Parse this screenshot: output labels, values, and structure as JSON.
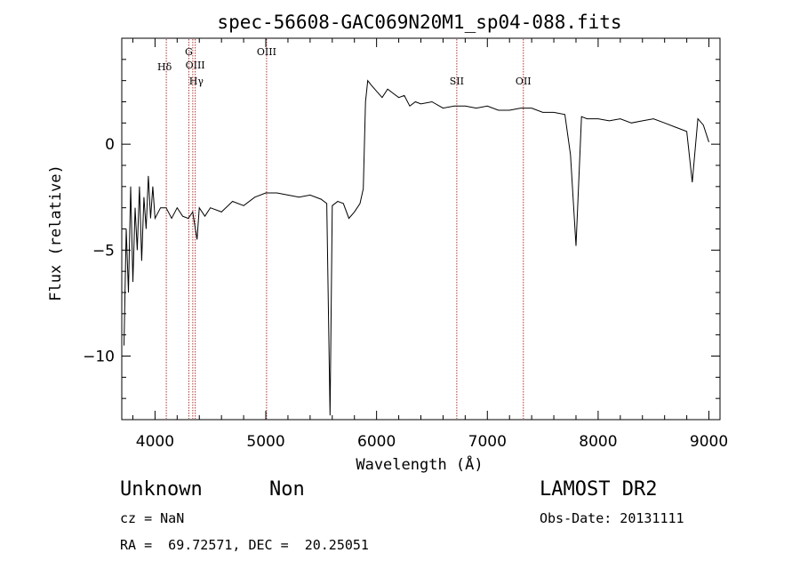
{
  "chart_data": {
    "type": "line",
    "title": "spec-56608-GAC069N20M1_sp04-088.fits",
    "xlabel": "Wavelength (Å)",
    "ylabel": "Flux (relative)",
    "xlim": [
      3700,
      9100
    ],
    "ylim": [
      -13,
      5
    ],
    "xticks": [
      4000,
      5000,
      6000,
      7000,
      8000,
      9000
    ],
    "xtick_labels": [
      "4000",
      "5000",
      "6000",
      "7000",
      "8000",
      "9000"
    ],
    "yticks": [
      0,
      -5,
      -10
    ],
    "ytick_labels": [
      "0",
      "−5",
      "−10"
    ],
    "series": [
      {
        "x": [
          3720,
          3740,
          3760,
          3780,
          3800,
          3820,
          3840,
          3860,
          3880,
          3900,
          3920,
          3940,
          3960,
          3980,
          4000,
          4050,
          4100,
          4150,
          4200,
          4250,
          4300,
          4340,
          4380,
          4400,
          4450,
          4500,
          4600,
          4700,
          4800,
          4900,
          5000,
          5100,
          5200,
          5300,
          5400,
          5500,
          5550,
          5580,
          5600,
          5650,
          5700,
          5750,
          5800,
          5850,
          5880,
          5900,
          5920,
          5950,
          6000,
          6050,
          6100,
          6150,
          6200,
          6250,
          6300,
          6350,
          6400,
          6500,
          6600,
          6700,
          6800,
          6900,
          7000,
          7100,
          7200,
          7300,
          7400,
          7500,
          7600,
          7700,
          7750,
          7800,
          7850,
          7900,
          8000,
          8100,
          8200,
          8300,
          8400,
          8500,
          8600,
          8700,
          8800,
          8850,
          8900,
          8950,
          9000
        ],
        "y": [
          -9.5,
          -4,
          -7,
          -2,
          -6.5,
          -3,
          -5,
          -2,
          -5.5,
          -2.5,
          -4,
          -1.5,
          -3.5,
          -2,
          -3.5,
          -3,
          -3,
          -3.5,
          -3,
          -3.4,
          -3.5,
          -3.2,
          -4.5,
          -3,
          -3.4,
          -3,
          -3.2,
          -2.7,
          -2.9,
          -2.5,
          -2.3,
          -2.3,
          -2.4,
          -2.5,
          -2.4,
          -2.6,
          -2.8,
          -12.8,
          -2.9,
          -2.7,
          -2.8,
          -3.5,
          -3.2,
          -2.8,
          -2.1,
          2,
          3,
          2.8,
          2.5,
          2.2,
          2.6,
          2.4,
          2.2,
          2.3,
          1.8,
          2,
          1.9,
          2,
          1.7,
          1.8,
          1.8,
          1.7,
          1.8,
          1.6,
          1.6,
          1.7,
          1.7,
          1.5,
          1.5,
          1.4,
          -0.5,
          -4.8,
          1.3,
          1.2,
          1.2,
          1.1,
          1.2,
          1,
          1.1,
          1.2,
          1,
          0.8,
          0.6,
          -1.8,
          1.2,
          0.9,
          0.1
        ]
      }
    ],
    "lines": [
      {
        "label": "Hδ",
        "x": 4102
      },
      {
        "label": "G",
        "x": 4305
      },
      {
        "label": "OIII",
        "x": 4363
      },
      {
        "label": "Hγ",
        "x": 4341
      },
      {
        "label": "OIII",
        "x": 5007
      },
      {
        "label": "SII",
        "x": 6724
      },
      {
        "label": "OII",
        "x": 7325
      }
    ],
    "line_color": "#000000",
    "marker_color": "#b03030",
    "grid": false
  },
  "info": {
    "class": "Unknown",
    "subclass": "Non",
    "cz": "cz = NaN",
    "coords": "RA =  69.72571, DEC =  20.25051",
    "survey": "LAMOST DR2",
    "obs_date": "Obs-Date: 20131111"
  }
}
